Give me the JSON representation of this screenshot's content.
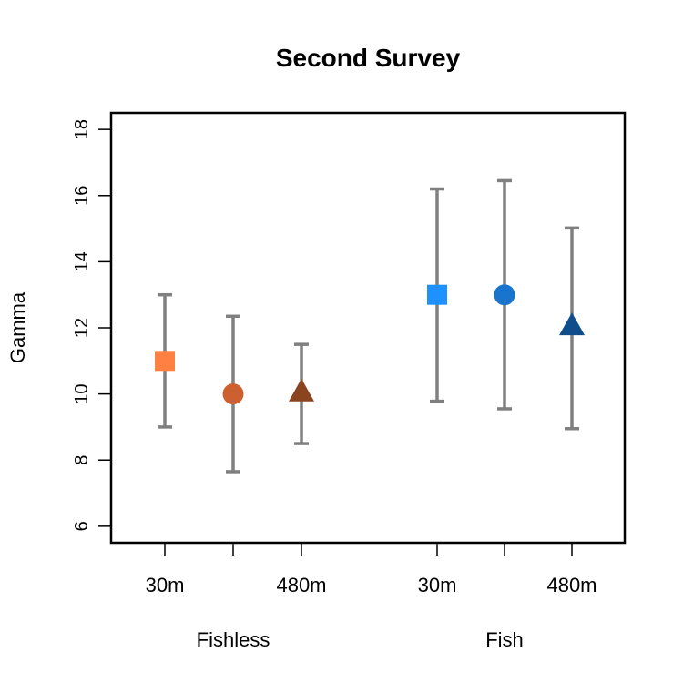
{
  "chart_data": {
    "type": "scatter",
    "title": "Second Survey",
    "xlabel": "",
    "ylabel": "Gamma",
    "ylim": [
      5.5,
      18.5
    ],
    "yticks": [
      6,
      8,
      10,
      12,
      14,
      16,
      18
    ],
    "grid": false,
    "groups": [
      "Fishless",
      "Fish"
    ],
    "points": [
      {
        "group": "Fishless",
        "label": "30m",
        "value": 11.0,
        "low": 9.0,
        "high": 13.0,
        "shape": "square",
        "color": "#FF8040"
      },
      {
        "group": "Fishless",
        "label": "",
        "value": 10.0,
        "low": 7.65,
        "high": 12.35,
        "shape": "circle",
        "color": "#CD6030"
      },
      {
        "group": "Fishless",
        "label": "480m",
        "value": 10.05,
        "low": 8.5,
        "high": 11.5,
        "shape": "triangle",
        "color": "#8B4420"
      },
      {
        "group": "Fish",
        "label": "30m",
        "value": 13.0,
        "low": 9.78,
        "high": 16.2,
        "shape": "square",
        "color": "#1E90FF"
      },
      {
        "group": "Fish",
        "label": "",
        "value": 13.0,
        "low": 9.55,
        "high": 16.45,
        "shape": "circle",
        "color": "#1874CD"
      },
      {
        "group": "Fish",
        "label": "480m",
        "value": 12.05,
        "low": 8.95,
        "high": 15.02,
        "shape": "triangle",
        "color": "#104E8B"
      }
    ],
    "errorbar_color": "#808080"
  }
}
